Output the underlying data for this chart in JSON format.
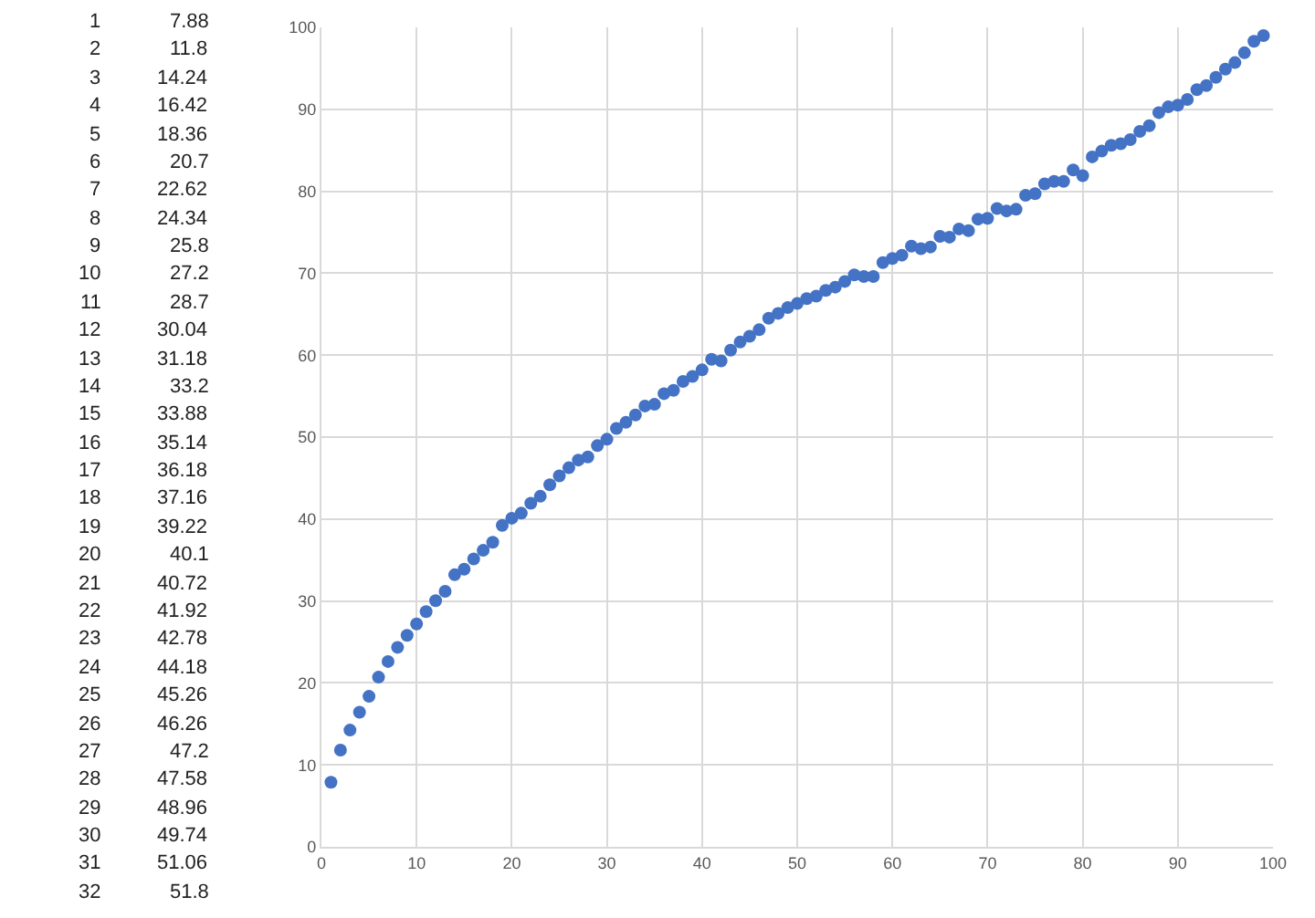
{
  "chart_data": {
    "type": "scatter",
    "marker": "circle",
    "grid": true,
    "xlim": [
      0,
      100
    ],
    "xticks": [
      0,
      10,
      20,
      30,
      40,
      50,
      60,
      70,
      80,
      90,
      100
    ],
    "ylim": [
      0,
      100
    ],
    "yticks": [
      0,
      10,
      20,
      30,
      40,
      50,
      60,
      70,
      80,
      90,
      100
    ],
    "x": [
      1,
      2,
      3,
      4,
      5,
      6,
      7,
      8,
      9,
      10,
      11,
      12,
      13,
      14,
      15,
      16,
      17,
      18,
      19,
      20,
      21,
      22,
      23,
      24,
      25,
      26,
      27,
      28,
      29,
      30,
      31,
      32,
      33,
      34,
      35,
      36,
      37,
      38,
      39,
      40,
      41,
      42,
      43,
      44,
      45,
      46,
      47,
      48,
      49,
      50,
      51,
      52,
      53,
      54,
      55,
      56,
      57,
      58,
      59,
      60,
      61,
      62,
      63,
      64,
      65,
      66,
      67,
      68,
      69,
      70,
      71,
      72,
      73,
      74,
      75,
      76,
      77,
      78,
      79,
      80,
      81,
      82,
      83,
      84,
      85,
      86,
      87,
      88,
      89,
      90,
      91,
      92,
      93,
      94,
      95,
      96,
      97,
      98,
      99
    ],
    "series": [
      {
        "color": "#4472c4",
        "values": [
          7.88,
          11.8,
          14.24,
          16.42,
          18.36,
          20.7,
          22.62,
          24.34,
          25.8,
          27.2,
          28.7,
          30.04,
          31.18,
          33.2,
          33.88,
          35.14,
          36.18,
          37.16,
          39.22,
          40.1,
          40.72,
          41.92,
          42.78,
          44.18,
          45.26,
          46.26,
          47.2,
          47.58,
          48.96,
          49.74,
          51.06,
          51.8,
          52.7,
          53.8,
          54.0,
          55.3,
          55.7,
          56.8,
          57.4,
          58.2,
          59.5,
          59.3,
          60.6,
          61.6,
          62.3,
          63.1,
          64.5,
          65.1,
          65.8,
          66.3,
          66.9,
          67.2,
          67.9,
          68.3,
          69.0,
          69.8,
          69.6,
          69.6,
          71.3,
          71.8,
          72.2,
          73.3,
          73.0,
          73.2,
          74.5,
          74.4,
          75.4,
          75.2,
          76.6,
          76.7,
          77.9,
          77.6,
          77.8,
          79.5,
          79.7,
          80.9,
          81.2,
          81.2,
          82.6,
          81.9,
          84.2,
          84.9,
          85.6,
          85.8,
          86.3,
          87.3,
          88.0,
          89.6,
          90.3,
          90.5,
          91.2,
          92.4,
          92.9,
          93.9,
          94.9,
          95.7,
          96.9,
          98.3,
          99.0
        ]
      }
    ],
    "annotations": [
      "1",
      "7.88",
      "2",
      "11.8",
      "3",
      "14.24",
      "4",
      "16.42",
      "5",
      "18.36",
      "6",
      "20.7",
      "7",
      "22.62",
      "8",
      "24.34",
      "9",
      "25.8",
      "10",
      "27.2",
      "11",
      "28.7",
      "12",
      "30.04",
      "13",
      "31.18",
      "14",
      "33.2",
      "15",
      "33.88",
      "16",
      "35.14",
      "17",
      "36.18",
      "18",
      "37.16",
      "19",
      "39.22",
      "20",
      "40.1",
      "21",
      "40.72",
      "22",
      "41.92",
      "23",
      "42.78",
      "24",
      "44.18",
      "25",
      "45.26",
      "26",
      "46.26",
      "27",
      "47.2",
      "28",
      "47.58",
      "29",
      "48.96",
      "30",
      "49.74",
      "31",
      "51.06",
      "32",
      "51.8"
    ]
  }
}
